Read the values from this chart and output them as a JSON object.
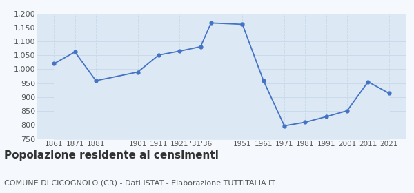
{
  "years": [
    1861,
    1871,
    1881,
    1901,
    1911,
    1921,
    1931,
    1936,
    1951,
    1961,
    1971,
    1981,
    1991,
    2001,
    2011,
    2021
  ],
  "population": [
    1020,
    1062,
    959,
    990,
    1051,
    1065,
    1081,
    1166,
    1161,
    960,
    797,
    810,
    830,
    851,
    955,
    914
  ],
  "xtick_positions": [
    1861,
    1871,
    1881,
    1901,
    1911,
    1921,
    1931,
    1951,
    1961,
    1971,
    1981,
    1991,
    2001,
    2011,
    2021
  ],
  "xtick_labels": [
    "1861",
    "1871",
    "1881",
    "1901",
    "1911",
    "1921",
    "'31'36",
    "1951",
    "1961",
    "1971",
    "1981",
    "1991",
    "2001",
    "2011",
    "2021"
  ],
  "ylim": [
    750,
    1200
  ],
  "yticks": [
    750,
    800,
    850,
    900,
    950,
    1000,
    1050,
    1100,
    1150,
    1200
  ],
  "xlim_left": 1853,
  "xlim_right": 2029,
  "line_color": "#4472c4",
  "fill_color": "#dce9f5",
  "marker_color": "#4472c4",
  "grid_color": "#c8d8e8",
  "background_color": "#f5f9fd",
  "title": "Popolazione residente ai censimenti",
  "subtitle": "COMUNE DI CICOGNOLO (CR) - Dati ISTAT - Elaborazione TUTTITALIA.IT",
  "title_fontsize": 11,
  "subtitle_fontsize": 8,
  "tick_fontsize": 7.5,
  "ytick_fontsize": 8
}
